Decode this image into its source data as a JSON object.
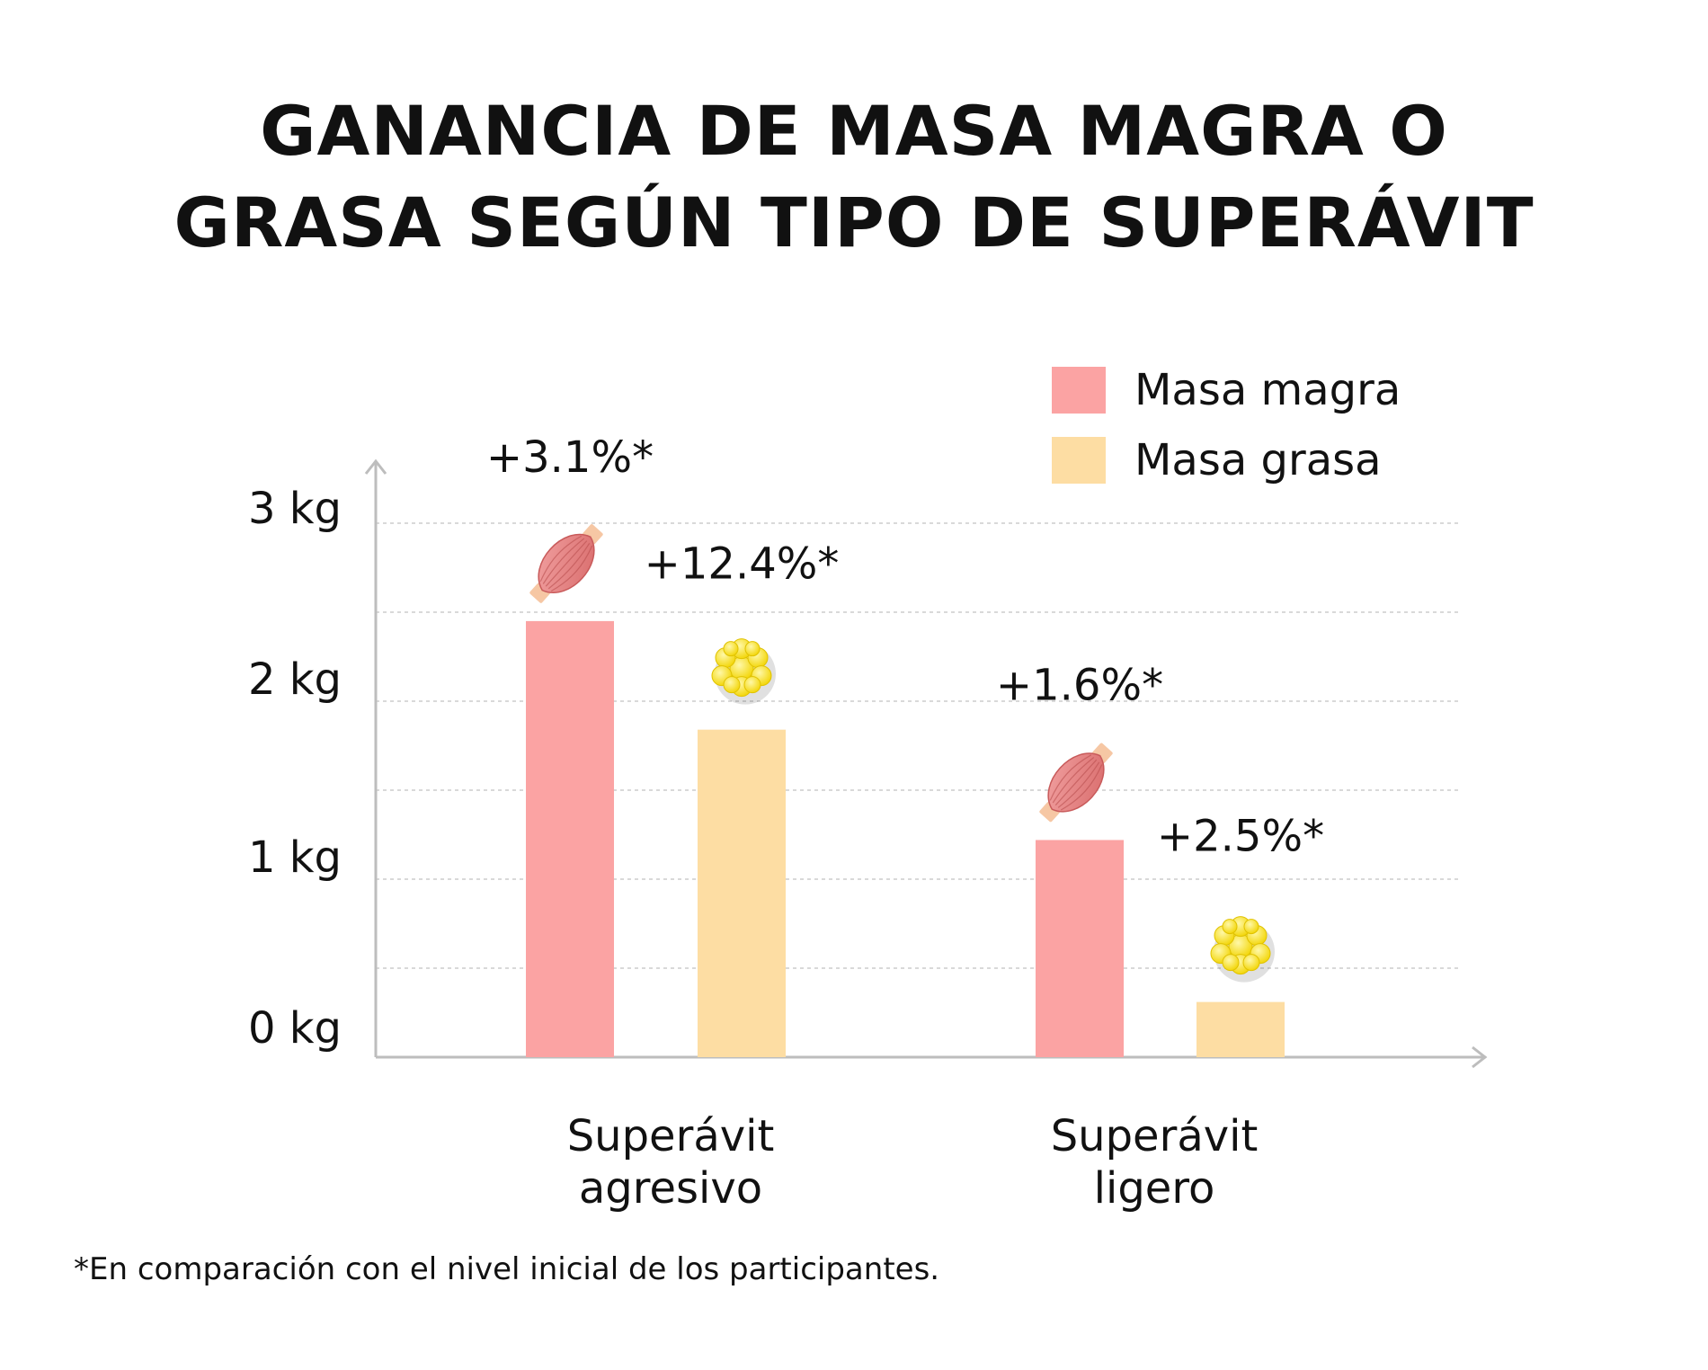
{
  "title_lines": [
    "GANANCIA DE MASA MAGRA O",
    "GRASA SEGÚN TIPO DE SUPERÁVIT"
  ],
  "footnote": "*En comparación con el nivel inicial de los participantes.",
  "colors": {
    "magra": "#FBA3A3",
    "grasa": "#FDDDA3",
    "grid": "#d9d9d9",
    "axis": "#bdbdbd"
  },
  "chart_data": {
    "type": "bar",
    "categories": [
      {
        "line1": "Superávit",
        "line2": "agresivo"
      },
      {
        "line1": "Superávit",
        "line2": "ligero"
      }
    ],
    "series": [
      {
        "name": "Masa magra",
        "values": [
          2.45,
          1.22
        ],
        "labels": [
          "+3.1%*",
          "+1.6%*"
        ],
        "icon": "muscle-icon"
      },
      {
        "name": "Masa grasa",
        "values": [
          1.84,
          0.31
        ],
        "labels": [
          "+12.4%*",
          "+2.5%*"
        ],
        "icon": "fat-cell-icon"
      }
    ],
    "yticks": [
      "0 kg",
      "1 kg",
      "2 kg",
      "3 kg"
    ],
    "ylim": [
      0,
      3
    ],
    "grid": true,
    "legend_position": "top-right"
  }
}
